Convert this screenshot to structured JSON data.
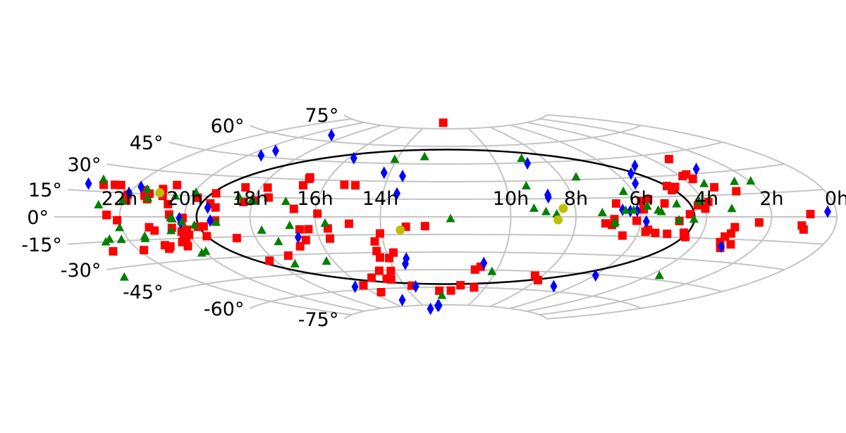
{
  "chart_data": {
    "type": "scatter",
    "projection": "aitoff",
    "title": "",
    "xlabel": "",
    "ylabel": "",
    "xlim": [
      -180,
      180
    ],
    "ylim": [
      -90,
      90
    ],
    "grid": true,
    "legend": "none",
    "x_ticks": [
      {
        "label": "10h",
        "ra_h": 10
      },
      {
        "label": "8h",
        "ra_h": 8
      },
      {
        "label": "6h",
        "ra_h": 6
      },
      {
        "label": "4h",
        "ra_h": 4
      },
      {
        "label": "2h",
        "ra_h": 2
      },
      {
        "label": "0h",
        "ra_h": 0
      },
      {
        "label": "22h",
        "ra_h": 22
      },
      {
        "label": "20h",
        "ra_h": 20
      },
      {
        "label": "18h",
        "ra_h": 18
      },
      {
        "label": "16h",
        "ra_h": 16
      },
      {
        "label": "14h",
        "ra_h": 14
      }
    ],
    "y_ticks": [
      {
        "label": "75°",
        "dec": 75
      },
      {
        "label": "60°",
        "dec": 60
      },
      {
        "label": "45°",
        "dec": 45
      },
      {
        "label": "30°",
        "dec": 30
      },
      {
        "label": "15°",
        "dec": 15
      },
      {
        "label": "0°",
        "dec": 0
      },
      {
        "label": "-15°",
        "dec": -15
      },
      {
        "label": "-30°",
        "dec": -30
      },
      {
        "label": "-45°",
        "dec": -45
      },
      {
        "label": "-60°",
        "dec": -60
      },
      {
        "label": "-75°",
        "dec": -75
      }
    ],
    "colors": {
      "squares": "#ff0000",
      "diamonds": "#0000ff",
      "triangles": "#008000",
      "circles": "#bfbf00",
      "grid": "#c4c4c4",
      "frame": "#000000"
    },
    "series": [
      {
        "marker": "square",
        "color": "#ff0000",
        "points": [
          [
            -4.5,
            80.2
          ],
          [
            129.4,
            40.9
          ],
          [
            124.2,
            30.0
          ],
          [
            124.5,
            26.7
          ],
          [
            130.2,
            20.3
          ],
          [
            121.4,
            29.1
          ],
          [
            111.8,
            21.8
          ],
          [
            108.3,
            22.7
          ],
          [
            109.0,
            19.6
          ],
          [
            138.8,
            17.0
          ],
          [
            95.1,
            13.4
          ],
          [
            101.9,
            10.0
          ],
          [
            117.0,
            8.2
          ],
          [
            122.5,
            10.5
          ],
          [
            120.0,
            5.8
          ],
          [
            91.5,
            5.7
          ],
          [
            112.5,
            1.9
          ],
          [
            167.9,
            1.6
          ],
          [
            144.5,
            -3.6
          ],
          [
            133.9,
            -6.9
          ],
          [
            164.5,
            -5.1
          ],
          [
            166.0,
            -7.4
          ],
          [
            107.7,
            -3.1
          ],
          [
            73.8,
            -5.2
          ],
          [
            77.7,
            -1.8
          ],
          [
            111.3,
            -11.5
          ],
          [
            112.1,
            -13.6
          ],
          [
            98.1,
            -12.1
          ],
          [
            133.4,
            -11.2
          ],
          [
            131.1,
            -17.2
          ],
          [
            137.0,
            -18.4
          ],
          [
            133.7,
            -21.0
          ],
          [
            113.1,
            -14.6
          ],
          [
            103.8,
            -12.6
          ],
          [
            83.3,
            -14.6
          ],
          [
            88.0,
            -3.0
          ],
          [
            94.2,
            -9.8
          ],
          [
            93.3,
            -11.3
          ],
          [
            131.4,
            -13.4
          ],
          [
            79.4,
            10.5
          ],
          [
            91.5,
            12.2
          ],
          [
            76.9,
            -6.4
          ],
          [
            19.9,
            -42.3
          ],
          [
            17.2,
            -44.8
          ],
          [
            21.7,
            -60.0
          ],
          [
            10.9,
            -58.2
          ],
          [
            4.4,
            -62.8
          ],
          [
            60.8,
            -52.1
          ],
          [
            55.5,
            -48.6
          ],
          [
            -9.5,
            -7.9
          ],
          [
            -18.4,
            -8.4
          ],
          [
            -30.8,
            -14.0
          ],
          [
            -54.7,
            -9.5
          ],
          [
            -63.8,
            -10.0
          ],
          [
            -67.9,
            -10.1
          ],
          [
            -44.6,
            -5.7
          ],
          [
            -5.1,
            -62.9
          ],
          [
            -24.9,
            -58.3
          ],
          [
            -35.9,
            -52.7
          ],
          [
            -47.3,
            -50.7
          ],
          [
            -58.8,
            -56.6
          ],
          [
            -53.4,
            -62.8
          ],
          [
            -38.3,
            -51.9
          ],
          [
            -39.1,
            -45.2
          ],
          [
            -32.4,
            -45.6
          ],
          [
            -29.7,
            -34.7
          ],
          [
            -26.5,
            -30.2
          ],
          [
            -34.4,
            -34.2
          ],
          [
            -34.1,
            -20.6
          ],
          [
            -34.7,
            -28.7
          ],
          [
            -55.0,
            -17.8
          ],
          [
            -66.8,
            -18.8
          ],
          [
            -71.2,
            -23.6
          ],
          [
            -80.7,
            -30.6
          ],
          [
            -93.0,
            -33.8
          ],
          [
            -98.9,
            -16.0
          ],
          [
            -112.4,
            -14.0
          ],
          [
            -120.3,
            -12.6
          ],
          [
            -122.4,
            -14.7
          ],
          [
            -124.0,
            -15.4
          ],
          [
            -125.8,
            -17.5
          ],
          [
            -124.9,
            -20.5
          ],
          [
            -133.3,
            -20.1
          ],
          [
            -135.3,
            -19.1
          ],
          [
            -134.9,
            -21.5
          ],
          [
            -147.6,
            -21.4
          ],
          [
            -162.7,
            -20.8
          ],
          [
            -135.3,
            -9.2
          ],
          [
            -126.8,
            -7.6
          ],
          [
            -111.9,
            -6.9
          ],
          [
            -120.2,
            -9.1
          ],
          [
            -114.7,
            -7.2
          ],
          [
            -123.0,
            -10.3
          ],
          [
            -106.1,
            -2.7
          ],
          [
            -121.0,
            -0.7
          ],
          [
            -127.2,
            1.6
          ],
          [
            -155.9,
            1.1
          ],
          [
            -151.2,
            -2.1
          ],
          [
            -59.0,
            2.6
          ],
          [
            -70.1,
            6.4
          ],
          [
            -106.4,
            6.9
          ],
          [
            -109.4,
            9.8
          ],
          [
            -116.6,
            13.7
          ],
          [
            -128.9,
            8.7
          ],
          [
            -139.7,
            11.6
          ],
          [
            -148.9,
            10.4
          ],
          [
            -150.2,
            14.1
          ],
          [
            -157.5,
            19.6
          ],
          [
            -160.5,
            19.5
          ],
          [
            -165.7,
            19.0
          ],
          [
            -137.2,
            -6.9
          ],
          [
            -121.2,
            -1.0
          ],
          [
            -89.7,
            12.6
          ],
          [
            -94.3,
            11.3
          ],
          [
            -83.5,
            15.1
          ],
          [
            -70.4,
            25.3
          ],
          [
            -86.8,
            22.7
          ],
          [
            -50.3,
            26.5
          ],
          [
            -69.8,
            30.6
          ],
          [
            -70.0,
            31.7
          ],
          [
            -44.7,
            26.2
          ],
          [
            -97.5,
            22.3
          ],
          [
            -109.3,
            17.2
          ],
          [
            -142.0,
            13.9
          ],
          [
            -143.7,
            17.3
          ],
          [
            -140.4,
            15.3
          ],
          [
            -131.2,
            21.8
          ],
          [
            -135.9,
            18.7
          ],
          [
            -133.5,
            14.2
          ],
          [
            -156.0,
            1.2
          ]
        ]
      },
      {
        "marker": "diamond",
        "color": "#0000ff",
        "points": [
          [
            176.0,
            2.9
          ],
          [
            133.4,
            33.0
          ],
          [
            105.1,
            38.4
          ],
          [
            97.4,
            33.0
          ],
          [
            94.2,
            25.5
          ],
          [
            47.9,
            44.5
          ],
          [
            85.2,
            4.5
          ],
          [
            88.4,
            4.7
          ],
          [
            81.7,
            5.5
          ],
          [
            92.5,
            -3.5
          ],
          [
            48.7,
            18.2
          ],
          [
            48.6,
            16.2
          ],
          [
            133.7,
            -20.3
          ],
          [
            -22.6,
            34.6
          ],
          [
            -33.1,
            37.1
          ],
          [
            -23.3,
            19.8
          ],
          [
            -56.8,
            48.4
          ],
          [
            -103.2,
            64.3
          ],
          [
            -110.9,
            49.9
          ],
          [
            -113.0,
            45.8
          ],
          [
            -110.0,
            6.7
          ],
          [
            -108.4,
            -2.7
          ],
          [
            -122.5,
            -1.0
          ],
          [
            -122.1,
            -4.3
          ],
          [
            -147.2,
            19.3
          ],
          [
            -150.2,
            15.2
          ],
          [
            -173.4,
            19.0
          ],
          [
            -69.8,
            -16.4
          ],
          [
            -20.8,
            -35.3
          ],
          [
            -22.2,
            -39.8
          ],
          [
            21.0,
            -39.2
          ],
          [
            -22.3,
            -59.1
          ],
          [
            -9.0,
            -75.5
          ],
          [
            -10.5,
            -75.6
          ],
          [
            -24.5,
            -78.2
          ],
          [
            -66.0,
            -57.3
          ],
          [
            -45.4,
            -70.0
          ],
          [
            90.7,
            -45.8
          ],
          [
            77.3,
            -56.0
          ]
        ]
      },
      {
        "marker": "triangle",
        "color": "#008000",
        "points": [
          [
            47.1,
            48.7
          ],
          [
            -13.4,
            51.1
          ],
          [
            -31.3,
            48.5
          ],
          [
            67.6,
            32.2
          ],
          [
            39.9,
            25.9
          ],
          [
            150.7,
            22.8
          ],
          [
            142.8,
            23.3
          ],
          [
            127.2,
            23.1
          ],
          [
            85.5,
            19.8
          ],
          [
            118.3,
            10.9
          ],
          [
            107.4,
            9.5
          ],
          [
            93.5,
            8.1
          ],
          [
            132.2,
            5.6
          ],
          [
            98.1,
            5.0
          ],
          [
            99.5,
            3.9
          ],
          [
            83.1,
            5.1
          ],
          [
            86.8,
            5.2
          ],
          [
            72.2,
            3.4
          ],
          [
            40.9,
            7.1
          ],
          [
            46.3,
            4.3
          ],
          [
            51.2,
            2.4
          ],
          [
            114.3,
            -1.7
          ],
          [
            107.5,
            -2.2
          ],
          [
            78.2,
            -3.9
          ],
          [
            78.0,
            -5.3
          ],
          [
            2.3,
            -1.6
          ],
          [
            -55.6,
            -5.2
          ],
          [
            -72.1,
            -6.9
          ],
          [
            -105.8,
            -4.0
          ],
          [
            -125.8,
            -1.4
          ],
          [
            -126.6,
            -0.6
          ],
          [
            -121.5,
            -3.5
          ],
          [
            -116.1,
            -6.0
          ],
          [
            -85.6,
            -10.4
          ],
          [
            -127.7,
            -9.5
          ],
          [
            -150.9,
            -6.8
          ],
          [
            -141.3,
            -12.7
          ],
          [
            -141.8,
            -14.2
          ],
          [
            -158.6,
            -13.6
          ],
          [
            -161.4,
            -15.1
          ],
          [
            -153.2,
            -14.1
          ],
          [
            -80.2,
            -19.5
          ],
          [
            -121.8,
            -25.7
          ],
          [
            -118.9,
            -24.6
          ],
          [
            -180.0,
            -34.8
          ],
          [
            -81.9,
            -37.2
          ],
          [
            -63.8,
            -36.1
          ],
          [
            -89.6,
            12.0
          ],
          [
            -74.7,
            12.2
          ],
          [
            -90.8,
            13.1
          ],
          [
            -97.7,
            15.4
          ],
          [
            -139.7,
            12.4
          ],
          [
            -127.5,
            14.3
          ],
          [
            -119.1,
            17.4
          ],
          [
            -150.6,
            9.9
          ],
          [
            -160.8,
            7.2
          ],
          [
            -169.0,
            22.0
          ],
          [
            -143.2,
            18.1
          ],
          [
            27.7,
            -46.3
          ],
          [
            -3.4,
            -67.0
          ],
          [
            125.5,
            -42.1
          ]
        ]
      },
      {
        "marker": "circle",
        "color": "#bfbf00",
        "points": [
          [
            54.4,
            6.9
          ],
          [
            51.8,
            -2.5
          ],
          [
            -21.1,
            -11.2
          ],
          [
            -135.9,
            16.1
          ]
        ]
      }
    ]
  }
}
